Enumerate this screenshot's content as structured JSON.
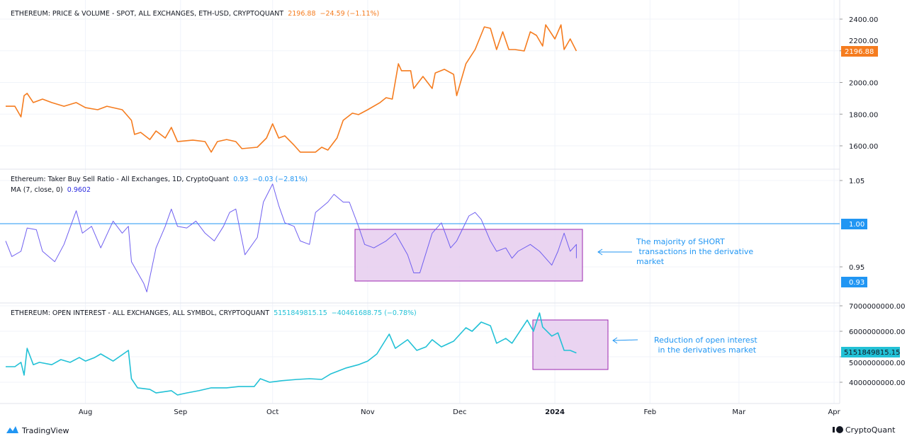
{
  "colors": {
    "price": "#f57c1f",
    "ratio": "#6f5ff0",
    "ratio_value": "#2196f3",
    "ma_value": "#2b2be0",
    "oi": "#22c1d6",
    "box_fill": "#e6cdee",
    "box_stroke": "#9c27b0",
    "annotation": "#2196f3",
    "grid": "#f0f3fa"
  },
  "chart_data": [
    {
      "type": "line",
      "title": "ETHEREUM: PRICE & VOLUME - SPOT, ALL EXCHANGES, ETH-USD, CRYPTOQUANT",
      "last": "2196.88",
      "change": "−24.59 (−1.11%)",
      "badge": "2196.88",
      "ylim": [
        1530,
        2450
      ],
      "yticks": [
        "2400.00",
        "2200.00",
        "2000.00",
        "1800.00",
        "1600.00"
      ],
      "grid": true,
      "x": [
        "2023-07-06",
        "2023-07-09",
        "2023-07-11",
        "2023-07-12",
        "2023-07-13",
        "2023-07-15",
        "2023-07-18",
        "2023-07-21",
        "2023-07-25",
        "2023-07-29",
        "2023-08-01",
        "2023-08-05",
        "2023-08-08",
        "2023-08-13",
        "2023-08-16",
        "2023-08-17",
        "2023-08-19",
        "2023-08-22",
        "2023-08-24",
        "2023-08-27",
        "2023-08-29",
        "2023-08-31",
        "2023-09-05",
        "2023-09-09",
        "2023-09-11",
        "2023-09-13",
        "2023-09-16",
        "2023-09-19",
        "2023-09-21",
        "2023-09-26",
        "2023-09-29",
        "2023-10-01",
        "2023-10-03",
        "2023-10-05",
        "2023-10-08",
        "2023-10-10",
        "2023-10-15",
        "2023-10-17",
        "2023-10-19",
        "2023-10-22",
        "2023-10-24",
        "2023-10-27",
        "2023-10-29",
        "2023-11-01",
        "2023-11-05",
        "2023-11-07",
        "2023-11-09",
        "2023-11-11",
        "2023-11-12",
        "2023-11-15",
        "2023-11-16",
        "2023-11-19",
        "2023-11-22",
        "2023-11-23",
        "2023-11-26",
        "2023-11-29",
        "2023-11-30",
        "2023-12-03",
        "2023-12-06",
        "2023-12-09",
        "2023-12-11",
        "2023-12-13",
        "2023-12-15",
        "2023-12-17",
        "2023-12-19",
        "2023-12-22",
        "2023-12-24",
        "2023-12-26",
        "2023-12-28",
        "2023-12-29",
        "2024-01-01",
        "2024-01-03",
        "2024-01-04",
        "2024-01-06",
        "2024-01-08"
      ],
      "y": [
        1850,
        1850,
        1783,
        1917,
        1931,
        1873,
        1895,
        1873,
        1850,
        1873,
        1841,
        1828,
        1850,
        1828,
        1761,
        1672,
        1685,
        1640,
        1694,
        1649,
        1716,
        1627,
        1636,
        1627,
        1560,
        1627,
        1640,
        1627,
        1582,
        1591,
        1649,
        1739,
        1649,
        1663,
        1604,
        1560,
        1560,
        1591,
        1573,
        1649,
        1761,
        1806,
        1797,
        1828,
        1873,
        1904,
        1895,
        2118,
        2074,
        2074,
        1962,
        2038,
        1962,
        2060,
        2083,
        2051,
        1917,
        2118,
        2208,
        2351,
        2342,
        2208,
        2320,
        2208,
        2208,
        2199,
        2320,
        2297,
        2230,
        2364,
        2275,
        2364,
        2208,
        2275,
        2199
      ]
    },
    {
      "type": "line",
      "title": "Ethereum: Taker Buy Sell Ratio - All Exchanges, 1D, CryptoQuant",
      "last": "0.93",
      "change": "−0.03 (−2.81%)",
      "ma_label": "MA (7, close, 0)",
      "ma_value": "0.9602",
      "badges": [
        "1.00",
        "0.93"
      ],
      "ylim": [
        0.91,
        1.06
      ],
      "yticks": [
        "1.05",
        "0.95"
      ],
      "hline": 1.0,
      "grid": true,
      "x": [
        "2023-07-06",
        "2023-07-08",
        "2023-07-11",
        "2023-07-13",
        "2023-07-16",
        "2023-07-18",
        "2023-07-22",
        "2023-07-25",
        "2023-07-29",
        "2023-07-31",
        "2023-08-03",
        "2023-08-06",
        "2023-08-10",
        "2023-08-13",
        "2023-08-15",
        "2023-08-16",
        "2023-08-20",
        "2023-08-21",
        "2023-08-24",
        "2023-08-27",
        "2023-08-29",
        "2023-08-31",
        "2023-09-03",
        "2023-09-06",
        "2023-09-09",
        "2023-09-12",
        "2023-09-15",
        "2023-09-17",
        "2023-09-19",
        "2023-09-22",
        "2023-09-26",
        "2023-09-28",
        "2023-10-01",
        "2023-10-03",
        "2023-10-05",
        "2023-10-08",
        "2023-10-10",
        "2023-10-13",
        "2023-10-15",
        "2023-10-19",
        "2023-10-21",
        "2023-10-24",
        "2023-10-26",
        "2023-10-29",
        "2023-10-31",
        "2023-11-03",
        "2023-11-07",
        "2023-11-10",
        "2023-11-14",
        "2023-11-16",
        "2023-11-18",
        "2023-11-22",
        "2023-11-25",
        "2023-11-28",
        "2023-11-30",
        "2023-12-04",
        "2023-12-06",
        "2023-12-08",
        "2023-12-11",
        "2023-12-13",
        "2023-12-16",
        "2023-12-18",
        "2023-12-20",
        "2023-12-24",
        "2023-12-27",
        "2023-12-31",
        "2024-01-02",
        "2024-01-04",
        "2024-01-06",
        "2024-01-08",
        "2024-01-08"
      ],
      "y": [
        0.98,
        0.962,
        0.968,
        0.995,
        0.993,
        0.968,
        0.956,
        0.976,
        1.015,
        0.989,
        0.997,
        0.972,
        1.003,
        0.989,
        0.997,
        0.956,
        0.931,
        0.921,
        0.972,
        0.997,
        1.017,
        0.997,
        0.995,
        1.003,
        0.989,
        0.98,
        0.997,
        1.013,
        1.017,
        0.964,
        0.984,
        1.025,
        1.046,
        1.021,
        1.001,
        0.997,
        0.98,
        0.976,
        1.013,
        1.025,
        1.034,
        1.025,
        1.025,
        0.997,
        0.976,
        0.972,
        0.98,
        0.989,
        0.964,
        0.943,
        0.943,
        0.989,
        1.001,
        0.972,
        0.98,
        1.009,
        1.013,
        1.005,
        0.98,
        0.968,
        0.972,
        0.96,
        0.968,
        0.976,
        0.968,
        0.952,
        0.968,
        0.989,
        0.968,
        0.976,
        0.96
      ]
    },
    {
      "type": "line",
      "title": "ETHEREUM: OPEN INTEREST - ALL EXCHANGES, ALL SYMBOL, CRYPTOQUANT",
      "last": "5151849815.15",
      "change": "−40461688.75 (−0.78%)",
      "badge": "5151849815.15",
      "ylim": [
        3200000000,
        7300000000
      ],
      "yticks": [
        "7000000000.00",
        "6000000000.00",
        "5000000000.00",
        "4000000000.00"
      ],
      "grid": true,
      "x": [
        "2023-07-06",
        "2023-07-09",
        "2023-07-11",
        "2023-07-12",
        "2023-07-13",
        "2023-07-15",
        "2023-07-17",
        "2023-07-21",
        "2023-07-24",
        "2023-07-27",
        "2023-07-30",
        "2023-08-01",
        "2023-08-04",
        "2023-08-06",
        "2023-08-10",
        "2023-08-15",
        "2023-08-16",
        "2023-08-18",
        "2023-08-22",
        "2023-08-24",
        "2023-08-29",
        "2023-08-31",
        "2023-09-03",
        "2023-09-07",
        "2023-09-11",
        "2023-09-16",
        "2023-09-20",
        "2023-09-25",
        "2023-09-27",
        "2023-09-30",
        "2023-10-04",
        "2023-10-09",
        "2023-10-13",
        "2023-10-17",
        "2023-10-20",
        "2023-10-25",
        "2023-10-29",
        "2023-11-01",
        "2023-11-04",
        "2023-11-08",
        "2023-11-10",
        "2023-11-14",
        "2023-11-17",
        "2023-11-20",
        "2023-11-22",
        "2023-11-25",
        "2023-11-29",
        "2023-12-03",
        "2023-12-05",
        "2023-12-08",
        "2023-12-11",
        "2023-12-13",
        "2023-12-16",
        "2023-12-18",
        "2023-12-23",
        "2023-12-25",
        "2023-12-27",
        "2023-12-28",
        "2023-12-31",
        "2024-01-02",
        "2024-01-04",
        "2024-01-06",
        "2024-01-08"
      ],
      "y": [
        4610000000,
        4610000000,
        4780000000,
        4280000000,
        5330000000,
        4690000000,
        4780000000,
        4690000000,
        4890000000,
        4780000000,
        4970000000,
        4830000000,
        4970000000,
        5110000000,
        4830000000,
        5250000000,
        4140000000,
        3780000000,
        3720000000,
        3580000000,
        3670000000,
        3500000000,
        3580000000,
        3670000000,
        3780000000,
        3780000000,
        3830000000,
        3830000000,
        4140000000,
        4000000000,
        4060000000,
        4110000000,
        4140000000,
        4110000000,
        4330000000,
        4560000000,
        4690000000,
        4830000000,
        5110000000,
        5890000000,
        5330000000,
        5670000000,
        5250000000,
        5390000000,
        5670000000,
        5390000000,
        5610000000,
        6140000000,
        6000000000,
        6360000000,
        6220000000,
        5530000000,
        5720000000,
        5530000000,
        6440000000,
        6000000000,
        6720000000,
        6170000000,
        5810000000,
        5940000000,
        5250000000,
        5250000000,
        5150000000
      ]
    }
  ],
  "x_axis": {
    "ticks": [
      {
        "label": "Aug",
        "date": "2023-08-01"
      },
      {
        "label": "Sep",
        "date": "2023-09-01"
      },
      {
        "label": "Oct",
        "date": "2023-10-01"
      },
      {
        "label": "Nov",
        "date": "2023-11-01"
      },
      {
        "label": "Dec",
        "date": "2023-12-01"
      },
      {
        "label": "2024",
        "date": "2024-01-01"
      },
      {
        "label": "Feb",
        "date": "2024-02-01"
      },
      {
        "label": "Mar",
        "date": "2024-03-01"
      },
      {
        "label": "Apr",
        "date": "2024-04-01"
      }
    ]
  },
  "annotations": {
    "short_text": [
      "The majority of SHORT",
      " transactions in the derivative",
      "market"
    ],
    "oi_text": [
      "Reduction of open interest",
      " in the derivatives market"
    ]
  },
  "footer": {
    "left_logo": "TradingView",
    "right_logo": "CryptoQuant"
  }
}
